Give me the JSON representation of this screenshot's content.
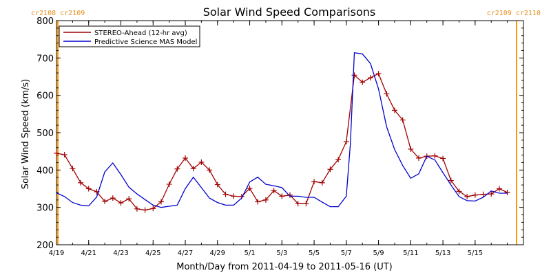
{
  "chart_data": {
    "type": "line",
    "title": "Solar Wind Speed Comparisons",
    "xlabel": "Month/Day from 2011-04-19 to 2011-05-16 (UT)",
    "ylabel": "Solar Wind Speed (km/s)",
    "xlim": [
      "2011-04-19",
      "2011-05-18"
    ],
    "ylim": [
      200,
      800
    ],
    "yticks": [
      "200",
      "300",
      "400",
      "500",
      "600",
      "700",
      "800"
    ],
    "xticks": [
      {
        "label": "4/19",
        "date": "2011-04-19"
      },
      {
        "label": "4/21",
        "date": "2011-04-21"
      },
      {
        "label": "4/23",
        "date": "2011-04-23"
      },
      {
        "label": "4/25",
        "date": "2011-04-25"
      },
      {
        "label": "4/27",
        "date": "2011-04-27"
      },
      {
        "label": "4/29",
        "date": "2011-04-29"
      },
      {
        "label": "5/1",
        "date": "2011-05-01"
      },
      {
        "label": "5/3",
        "date": "2011-05-03"
      },
      {
        "label": "5/5",
        "date": "2011-05-05"
      },
      {
        "label": "5/7",
        "date": "2011-05-07"
      },
      {
        "label": "5/9",
        "date": "2011-05-09"
      },
      {
        "label": "5/11",
        "date": "2011-05-11"
      },
      {
        "label": "5/13",
        "date": "2011-05-13"
      },
      {
        "label": "5/15",
        "date": "2011-05-15"
      }
    ],
    "legend_position": "top-left",
    "series": [
      {
        "name": "STEREO-Ahead (12-hr avg)",
        "color": "#a00000",
        "marker": "plus",
        "x": [
          "2011-04-19 00:00",
          "2011-04-19 12:00",
          "2011-04-20 00:00",
          "2011-04-20 12:00",
          "2011-04-21 00:00",
          "2011-04-21 12:00",
          "2011-04-22 00:00",
          "2011-04-22 12:00",
          "2011-04-23 00:00",
          "2011-04-23 12:00",
          "2011-04-24 00:00",
          "2011-04-24 12:00",
          "2011-04-25 00:00",
          "2011-04-25 12:00",
          "2011-04-26 00:00",
          "2011-04-26 12:00",
          "2011-04-27 00:00",
          "2011-04-27 12:00",
          "2011-04-28 00:00",
          "2011-04-28 12:00",
          "2011-04-29 00:00",
          "2011-04-29 12:00",
          "2011-04-30 00:00",
          "2011-04-30 12:00",
          "2011-05-01 00:00",
          "2011-05-01 12:00",
          "2011-05-02 00:00",
          "2011-05-02 12:00",
          "2011-05-03 00:00",
          "2011-05-03 12:00",
          "2011-05-04 00:00",
          "2011-05-04 12:00",
          "2011-05-05 00:00",
          "2011-05-05 12:00",
          "2011-05-06 00:00",
          "2011-05-06 12:00",
          "2011-05-07 00:00",
          "2011-05-07 12:00",
          "2011-05-08 00:00",
          "2011-05-08 12:00",
          "2011-05-09 00:00",
          "2011-05-09 12:00",
          "2011-05-10 00:00",
          "2011-05-10 12:00",
          "2011-05-11 00:00",
          "2011-05-11 12:00",
          "2011-05-12 00:00",
          "2011-05-12 12:00",
          "2011-05-13 00:00",
          "2011-05-13 12:00",
          "2011-05-14 00:00",
          "2011-05-14 12:00",
          "2011-05-15 00:00",
          "2011-05-15 12:00",
          "2011-05-16 00:00",
          "2011-05-16 12:00",
          "2011-05-17 00:00"
        ],
        "y": [
          445,
          441,
          404,
          366,
          350,
          342,
          316,
          325,
          312,
          323,
          296,
          293,
          297,
          315,
          362,
          403,
          432,
          404,
          421,
          400,
          361,
          335,
          330,
          329,
          351,
          315,
          320,
          345,
          330,
          333,
          310,
          310,
          369,
          366,
          402,
          428,
          476,
          654,
          635,
          647,
          658,
          604,
          560,
          534,
          456,
          432,
          437,
          438,
          431,
          372,
          343,
          329,
          333,
          335,
          336,
          350,
          340
        ]
      },
      {
        "name": "Predictive Science MAS Model",
        "color": "#0000cc",
        "marker": "none",
        "x": [
          "2011-04-19 00:00",
          "2011-04-19 12:00",
          "2011-04-20 00:00",
          "2011-04-20 12:00",
          "2011-04-21 00:00",
          "2011-04-21 12:00",
          "2011-04-22 00:00",
          "2011-04-22 12:00",
          "2011-04-23 00:00",
          "2011-04-23 12:00",
          "2011-04-24 00:00",
          "2011-04-24 12:00",
          "2011-04-25 00:00",
          "2011-04-25 12:00",
          "2011-04-26 00:00",
          "2011-04-26 12:00",
          "2011-04-27 00:00",
          "2011-04-27 12:00",
          "2011-04-28 00:00",
          "2011-04-28 12:00",
          "2011-04-29 00:00",
          "2011-04-29 12:00",
          "2011-04-30 00:00",
          "2011-04-30 12:00",
          "2011-05-01 00:00",
          "2011-05-01 12:00",
          "2011-05-02 00:00",
          "2011-05-02 12:00",
          "2011-05-03 00:00",
          "2011-05-03 12:00",
          "2011-05-04 00:00",
          "2011-05-04 12:00",
          "2011-05-05 00:00",
          "2011-05-05 12:00",
          "2011-05-06 00:00",
          "2011-05-06 12:00",
          "2011-05-07 00:00",
          "2011-05-07 06:00",
          "2011-05-07 12:00",
          "2011-05-08 00:00",
          "2011-05-08 12:00",
          "2011-05-09 00:00",
          "2011-05-09 12:00",
          "2011-05-10 00:00",
          "2011-05-10 12:00",
          "2011-05-11 00:00",
          "2011-05-11 12:00",
          "2011-05-12 00:00",
          "2011-05-12 12:00",
          "2011-05-13 00:00",
          "2011-05-13 12:00",
          "2011-05-14 00:00",
          "2011-05-14 12:00",
          "2011-05-15 00:00",
          "2011-05-15 12:00",
          "2011-05-16 00:00",
          "2011-05-16 12:00",
          "2011-05-17 00:00"
        ],
        "y": [
          339,
          329,
          313,
          306,
          304,
          328,
          395,
          419,
          388,
          354,
          336,
          321,
          306,
          300,
          303,
          306,
          350,
          381,
          353,
          325,
          313,
          306,
          306,
          325,
          368,
          381,
          362,
          358,
          353,
          330,
          330,
          327,
          327,
          314,
          302,
          302,
          330,
          470,
          714,
          711,
          685,
          617,
          516,
          455,
          412,
          378,
          390,
          437,
          427,
          393,
          360,
          329,
          318,
          317,
          327,
          344,
          338,
          338
        ]
      }
    ],
    "annotations": [
      {
        "text": "cr2108 cr2109",
        "position": "top-left"
      },
      {
        "text": "cr2109 cr2110",
        "position": "top-right"
      }
    ]
  }
}
